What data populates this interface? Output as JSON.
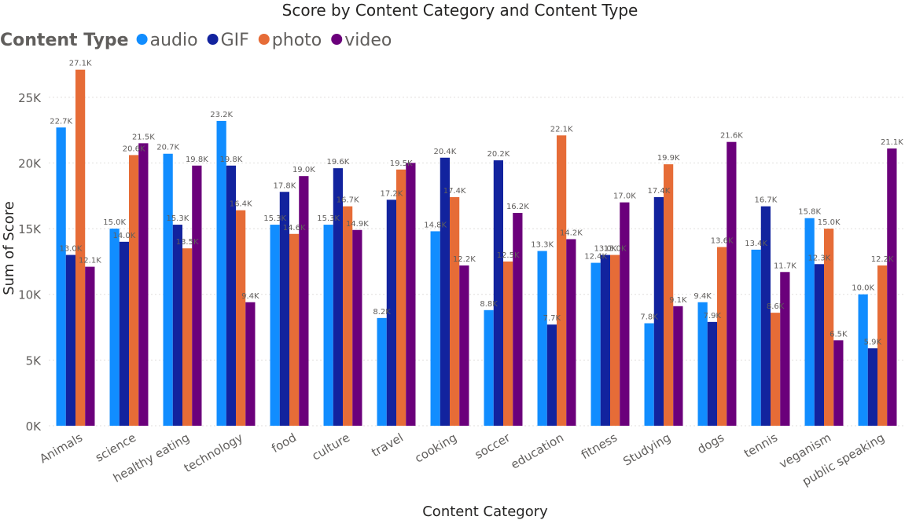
{
  "chart_data": {
    "type": "bar",
    "title": "Score by Content Category and Content Type",
    "xlabel": "Content Category",
    "ylabel": "Sum of Score",
    "legend_title": "Content Type",
    "legend_position": "top-left",
    "grid": true,
    "ylim": [
      0,
      27500
    ],
    "yticks": [
      0,
      5000,
      10000,
      15000,
      20000,
      25000
    ],
    "ytick_labels": [
      "0K",
      "5K",
      "10K",
      "15K",
      "20K",
      "25K"
    ],
    "categories": [
      "Animals",
      "science",
      "healthy eating",
      "technology",
      "food",
      "culture",
      "travel",
      "cooking",
      "soccer",
      "education",
      "fitness",
      "Studying",
      "dogs",
      "tennis",
      "veganism",
      "public speaking"
    ],
    "series": [
      {
        "name": "audio",
        "color": "#118DFF",
        "values": [
          22700,
          15000,
          20700,
          23200,
          15300,
          15300,
          8200,
          14800,
          8800,
          13300,
          12400,
          7800,
          9400,
          13400,
          15800,
          10000
        ],
        "labels": [
          "22.7K",
          "15.0K",
          "20.7K",
          "23.2K",
          "15.3K",
          "15.3K",
          "8.2K",
          "14.8K",
          "8.8K",
          "13.3K",
          "12.4K",
          "7.8K",
          "9.4K",
          "13.4K",
          "15.8K",
          "10.0K"
        ]
      },
      {
        "name": "GIF",
        "color": "#12239E",
        "values": [
          13000,
          14000,
          15300,
          19800,
          17800,
          19600,
          17200,
          20400,
          20200,
          7700,
          13000,
          17400,
          7900,
          16700,
          12300,
          5900
        ],
        "labels": [
          "13.0K",
          "14.0K",
          "15.3K",
          "19.8K",
          "17.8K",
          "19.6K",
          "17.2K",
          "20.4K",
          "20.2K",
          "7.7K",
          "13.0K",
          "17.4K",
          "7.9K",
          "16.7K",
          "12.3K",
          "5.9K"
        ]
      },
      {
        "name": "photo",
        "color": "#E66C37",
        "values": [
          27100,
          20600,
          13500,
          16400,
          14600,
          16700,
          19500,
          17400,
          12500,
          22100,
          13000,
          19900,
          13600,
          8600,
          15000,
          12200
        ],
        "labels": [
          "27.1K",
          "20.6K",
          "13.5K",
          "16.4K",
          "14.6K",
          "16.7K",
          "19.5K",
          "17.4K",
          "12.5K",
          "22.1K",
          "13.0K",
          "19.9K",
          "13.6K",
          "8.6K",
          "15.0K",
          "12.2K"
        ]
      },
      {
        "name": "video",
        "color": "#6B007B",
        "values": [
          12100,
          21500,
          19800,
          9400,
          19000,
          14900,
          20000,
          12200,
          16200,
          14200,
          17000,
          9100,
          21600,
          11700,
          6500,
          21100
        ],
        "labels": [
          "12.1K",
          "21.5K",
          "19.8K",
          "9.4K",
          "19.0K",
          "14.9K",
          "",
          "12.2K",
          "16.2K",
          "14.2K",
          "17.0K",
          "9.1K",
          "21.6K",
          "11.7K",
          "6.5K",
          "21.1K"
        ]
      }
    ]
  }
}
